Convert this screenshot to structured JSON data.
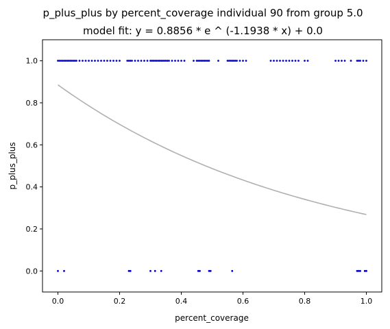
{
  "chart_data": {
    "type": "scatter",
    "title": "p_plus_plus by percent_coverage individual 90 from group 5.0",
    "subtitle": "model fit: y = 0.8856 * e ^ (-1.1938 * x) + 0.0",
    "xlabel": "percent_coverage",
    "ylabel": "p_plus_plus",
    "xlim": [
      -0.05,
      1.05
    ],
    "ylim": [
      -0.1,
      1.1
    ],
    "xticks": [
      "0.0",
      "0.2",
      "0.4",
      "0.6",
      "0.8",
      "1.0"
    ],
    "yticks": [
      "0.0",
      "0.2",
      "0.4",
      "0.6",
      "0.8",
      "1.0"
    ],
    "grid": false,
    "colors": {
      "points": "#0000cc",
      "fit": "#b0b0b0"
    },
    "fit": {
      "a": 0.8856,
      "b": -1.1938,
      "c": 0.0
    },
    "series": [
      {
        "values_y": 1,
        "x": [
          0.0,
          0.005,
          0.01,
          0.015,
          0.02,
          0.025,
          0.03,
          0.035,
          0.04,
          0.045,
          0.05,
          0.055,
          0.06,
          0.07,
          0.08,
          0.09,
          0.1,
          0.11,
          0.12,
          0.13,
          0.14,
          0.15,
          0.16,
          0.17,
          0.18,
          0.19,
          0.2,
          0.225,
          0.23,
          0.235,
          0.24,
          0.25,
          0.26,
          0.27,
          0.28,
          0.29,
          0.3,
          0.305,
          0.31,
          0.315,
          0.32,
          0.325,
          0.33,
          0.335,
          0.34,
          0.345,
          0.35,
          0.355,
          0.36,
          0.37,
          0.38,
          0.39,
          0.4,
          0.41,
          0.44,
          0.45,
          0.455,
          0.46,
          0.465,
          0.47,
          0.475,
          0.48,
          0.485,
          0.49,
          0.52,
          0.55,
          0.555,
          0.56,
          0.565,
          0.57,
          0.575,
          0.58,
          0.59,
          0.6,
          0.61,
          0.69,
          0.7,
          0.71,
          0.72,
          0.73,
          0.74,
          0.75,
          0.76,
          0.77,
          0.78,
          0.8,
          0.81,
          0.9,
          0.91,
          0.92,
          0.93,
          0.95,
          0.97,
          0.975,
          0.98,
          0.99,
          1.0
        ]
      },
      {
        "values_y": 0,
        "x": [
          0.0,
          0.02,
          0.23,
          0.235,
          0.3,
          0.315,
          0.335,
          0.455,
          0.46,
          0.49,
          0.495,
          0.565,
          0.97,
          0.975,
          0.98,
          0.995,
          1.0
        ]
      }
    ]
  }
}
